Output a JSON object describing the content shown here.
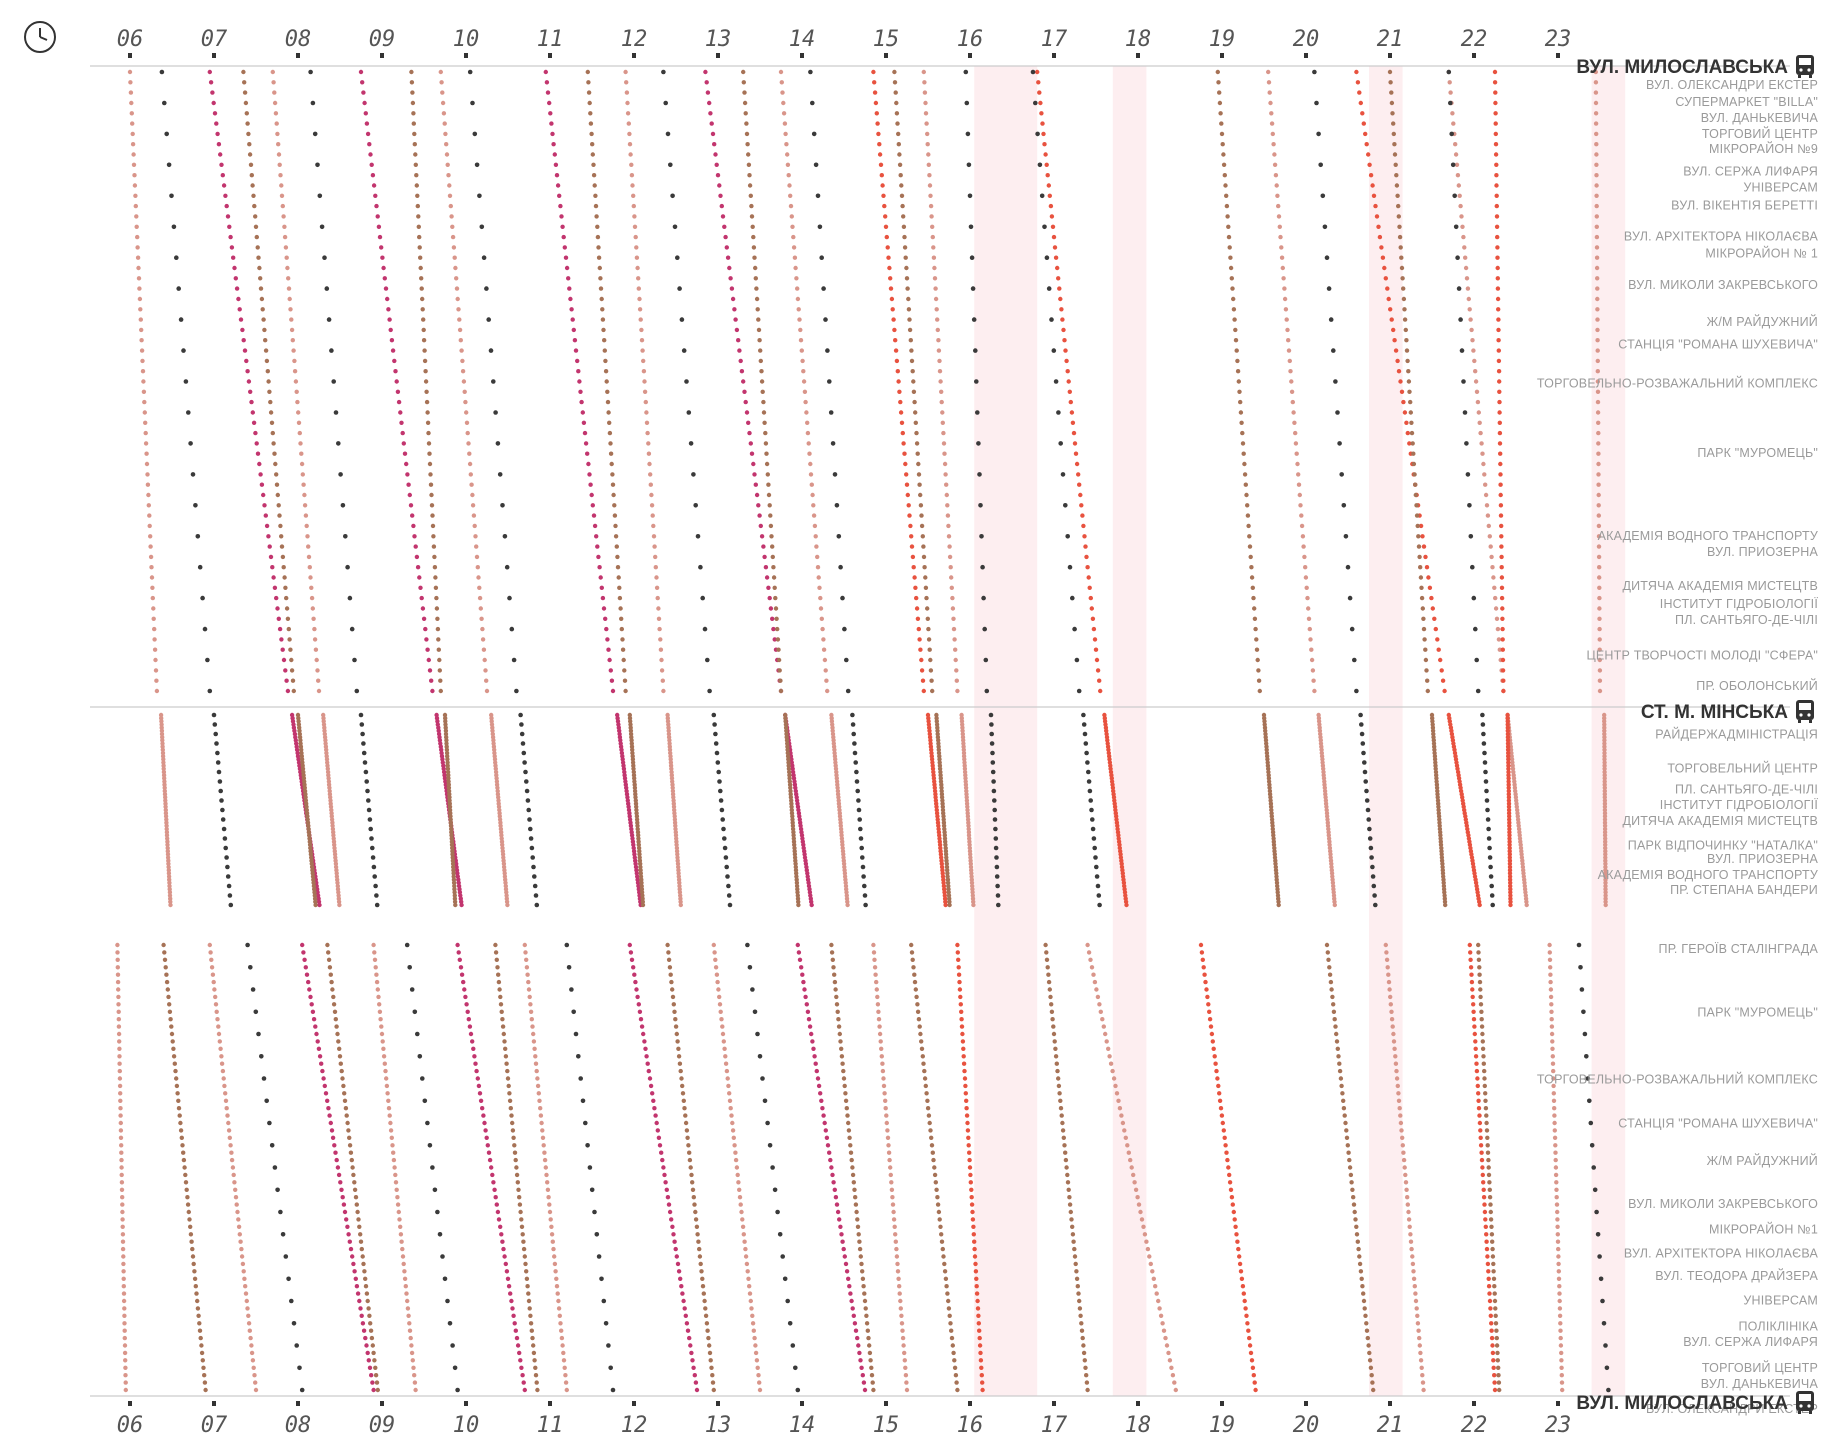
{
  "chart_data": {
    "type": "scatter",
    "title": "",
    "xlabel": "",
    "ylabel": "",
    "x_ticks": [
      "06",
      "07",
      "08",
      "09",
      "10",
      "11",
      "12",
      "13",
      "14",
      "15",
      "16",
      "17",
      "18",
      "19",
      "20",
      "21",
      "22",
      "23"
    ],
    "xlim": [
      5.8,
      23.9
    ],
    "grid": false,
    "clock_icon": "clock-icon",
    "bus_icon": "bus-icon",
    "colors": {
      "axis_line": "#cccccc",
      "tick_mark": "#333333",
      "label": "#9a9a9a",
      "terminal": "#333333",
      "shade": "#fdeef0",
      "series": [
        "#d9958a",
        "#3a3a3a",
        "#c2356e",
        "#a67256",
        "#e8523f"
      ]
    },
    "shaded_hours": [
      [
        16.05,
        16.8
      ],
      [
        17.7,
        18.1
      ],
      [
        20.75,
        21.15
      ],
      [
        23.4,
        23.8
      ]
    ],
    "terminals": {
      "top": "ВУЛ. МИЛОСЛАВСЬКА",
      "middle": "СТ. М. МІНСЬКА",
      "bottom": "ВУЛ. МИЛОСЛАВСЬКА"
    },
    "stops_outbound": [
      {
        "name": "ВУЛ. ОЛЕКСАНДРИ ЕКСТЕР",
        "pos": 0.02
      },
      {
        "name": "СУПЕРМАРКЕТ \"BILLA\"",
        "pos": 0.047
      },
      {
        "name": "ВУЛ. ДАНЬКЕВИЧА",
        "pos": 0.072
      },
      {
        "name": "ТОРГОВИЙ ЦЕНТР",
        "pos": 0.097
      },
      {
        "name": "МІКРОРАЙОН №9",
        "pos": 0.12
      },
      {
        "name": "ВУЛ. СЕРЖА ЛИФАРЯ",
        "pos": 0.155
      },
      {
        "name": "УНІВЕРСАМ",
        "pos": 0.18
      },
      {
        "name": "ВУЛ. ВІКЕНТІЯ БЕРЕТТІ",
        "pos": 0.208
      },
      {
        "name": "ВУЛ. АРХІТЕКТОРА НІКОЛАЄВА",
        "pos": 0.257
      },
      {
        "name": "МІКРОРАЙОН № 1",
        "pos": 0.283
      },
      {
        "name": "ВУЛ. МИКОЛИ ЗАКРЕВСЬКОГО",
        "pos": 0.332
      },
      {
        "name": "Ж/М РАЙДУЖНИЙ",
        "pos": 0.39
      },
      {
        "name": "СТАНЦІЯ \"РОМАНА ШУХЕВИЧА\"",
        "pos": 0.425
      },
      {
        "name": "ТОРГОВЕЛЬНО-РОЗВАЖАЛЬНИЙ КОМПЛЕКС",
        "pos": 0.486
      },
      {
        "name": "ПАРК \"МУРОМЕЦЬ\"",
        "pos": 0.594
      },
      {
        "name": "АКАДЕМІЯ ВОДНОГО ТРАНСПОРТУ",
        "pos": 0.724
      },
      {
        "name": "ВУЛ. ПРИОЗЕРНА",
        "pos": 0.749
      },
      {
        "name": "ДИТЯЧА АКАДЕМІЯ МИСТЕЦТВ",
        "pos": 0.802
      },
      {
        "name": "ІНСТИТУТ ГІДРОБІОЛОГІЇ",
        "pos": 0.83
      },
      {
        "name": "ПЛ. САНТЬЯГО-ДЕ-ЧІЛІ",
        "pos": 0.855
      },
      {
        "name": "ЦЕНТР ТВОРЧОСТІ МОЛОДІ \"СФЕРА\"",
        "pos": 0.91
      },
      {
        "name": "ПР. ОБОЛОНСЬКИЙ",
        "pos": 0.958
      }
    ],
    "stops_inbound": [
      {
        "name": "РАЙДЕРЖАДМІНІСТРАЦІЯ",
        "pos": 0.158
      },
      {
        "name": "ТОРГОВЕЛЬНИЙ ЦЕНТР",
        "pos": 0.331
      },
      {
        "name": "ПЛ. САНТЬЯГО-ДЕ-ЧІЛІ",
        "pos": 0.438
      },
      {
        "name": "ІНСТИТУТ ГІДРОБІОЛОГІЇ",
        "pos": 0.514
      },
      {
        "name": "ДИТЯЧА АКАДЕМІЯ МИСТЕЦТВ",
        "pos": 0.596
      },
      {
        "name": "ПАРК ВІДПОЧИНКУ \"НАТАЛКА\"",
        "pos": 0.719
      },
      {
        "name": "ВУЛ. ПРИОЗЕРНА",
        "pos": 0.789
      },
      {
        "name": "АКАДЕМІЯ ВОДНОГО ТРАНСПОРТУ",
        "pos": 0.869
      },
      {
        "name": "ПР. СТЕПАНА БАНДЕРИ",
        "pos": 0.944
      },
      {
        "name": "ПР. ГЕРОЇВ СТАЛІНГРАДА",
        "pos": 0.0
      },
      {
        "name": "ПАРК \"МУРОМЕЦЬ\"",
        "pos": 0.138
      },
      {
        "name": "ТОРГОВЕЛЬНО-РОЗВАЖАЛЬНИЙ КОМПЛЕКС",
        "pos": 0.283
      },
      {
        "name": "СТАНЦІЯ \"РОМАНА ШУХЕВИЧА\"",
        "pos": 0.379
      },
      {
        "name": "Ж/М РАЙДУЖНИЙ",
        "pos": 0.46
      },
      {
        "name": "ВУЛ. МИКОЛИ ЗАКРЕВСЬКОГО",
        "pos": 0.553
      },
      {
        "name": "МІКРОРАЙОН №1",
        "pos": 0.608
      },
      {
        "name": "ВУЛ. АРХІТЕКТОРА НІКОЛАЄВА",
        "pos": 0.66
      },
      {
        "name": "ВУЛ. ТЕОДОРА ДРАЙЗЕРА",
        "pos": 0.709
      },
      {
        "name": "УНІВЕРСАМ",
        "pos": 0.763
      },
      {
        "name": "ПОЛІКЛІНІКА",
        "pos": 0.819
      },
      {
        "name": "ВУЛ. СЕРЖА ЛИФАРЯ",
        "pos": 0.853
      },
      {
        "name": "ТОРГОВИЙ ЦЕНТР",
        "pos": 0.909
      },
      {
        "name": "ВУЛ. ДАНЬКЕВИЧА",
        "pos": 0.944
      },
      {
        "name": "ВУЛ. ОЛЕКСАНДРИ ЕКСТЕР",
        "pos": 0.998
      }
    ],
    "trips_top": [
      {
        "c": 0,
        "t0": 6.0,
        "t1": 6.32
      },
      {
        "c": 1,
        "t0": 6.38,
        "t1": 6.95
      },
      {
        "c": 2,
        "t0": 6.95,
        "t1": 7.88
      },
      {
        "c": 3,
        "t0": 7.35,
        "t1": 7.95
      },
      {
        "c": 0,
        "t0": 7.7,
        "t1": 8.25
      },
      {
        "c": 1,
        "t0": 8.15,
        "t1": 8.7
      },
      {
        "c": 2,
        "t0": 8.75,
        "t1": 9.6
      },
      {
        "c": 3,
        "t0": 9.35,
        "t1": 9.7
      },
      {
        "c": 0,
        "t0": 9.7,
        "t1": 10.25
      },
      {
        "c": 1,
        "t0": 10.05,
        "t1": 10.6
      },
      {
        "c": 2,
        "t0": 10.95,
        "t1": 11.75
      },
      {
        "c": 3,
        "t0": 11.45,
        "t1": 11.9
      },
      {
        "c": 0,
        "t0": 11.9,
        "t1": 12.35
      },
      {
        "c": 1,
        "t0": 12.35,
        "t1": 12.9
      },
      {
        "c": 2,
        "t0": 12.85,
        "t1": 13.75
      },
      {
        "c": 3,
        "t0": 13.3,
        "t1": 13.75
      },
      {
        "c": 0,
        "t0": 13.75,
        "t1": 14.3
      },
      {
        "c": 1,
        "t0": 14.1,
        "t1": 14.55
      },
      {
        "c": 4,
        "t0": 14.85,
        "t1": 15.45
      },
      {
        "c": 3,
        "t0": 15.1,
        "t1": 15.55
      },
      {
        "c": 0,
        "t0": 15.45,
        "t1": 15.85
      },
      {
        "c": 1,
        "t0": 15.95,
        "t1": 16.2
      },
      {
        "c": 4,
        "t0": 16.8,
        "t1": 17.55
      },
      {
        "c": 1,
        "t0": 16.75,
        "t1": 17.3
      },
      {
        "c": 3,
        "t0": 18.95,
        "t1": 19.45
      },
      {
        "c": 0,
        "t0": 19.55,
        "t1": 20.1
      },
      {
        "c": 1,
        "t0": 20.1,
        "t1": 20.6
      },
      {
        "c": 4,
        "t0": 20.6,
        "t1": 21.65
      },
      {
        "c": 3,
        "t0": 21.0,
        "t1": 21.45
      },
      {
        "c": 0,
        "t0": 21.7,
        "t1": 22.35
      },
      {
        "c": 1,
        "t0": 21.7,
        "t1": 22.05
      },
      {
        "c": 4,
        "t0": 22.25,
        "t1": 22.35
      },
      {
        "c": 0,
        "t0": 23.45,
        "t1": 23.5
      }
    ],
    "trips_bottom": [
      {
        "c": 0,
        "t0": 5.85,
        "t1": 5.95
      },
      {
        "c": 3,
        "t0": 6.4,
        "t1": 6.9
      },
      {
        "c": 0,
        "t0": 6.95,
        "t1": 7.5
      },
      {
        "c": 1,
        "t0": 7.4,
        "t1": 8.05
      },
      {
        "c": 2,
        "t0": 8.05,
        "t1": 8.9
      },
      {
        "c": 3,
        "t0": 8.35,
        "t1": 8.95
      },
      {
        "c": 0,
        "t0": 8.9,
        "t1": 9.4
      },
      {
        "c": 1,
        "t0": 9.3,
        "t1": 9.9
      },
      {
        "c": 2,
        "t0": 9.9,
        "t1": 10.7
      },
      {
        "c": 3,
        "t0": 10.35,
        "t1": 10.85
      },
      {
        "c": 0,
        "t0": 10.7,
        "t1": 11.2
      },
      {
        "c": 1,
        "t0": 11.2,
        "t1": 11.75
      },
      {
        "c": 2,
        "t0": 11.95,
        "t1": 12.75
      },
      {
        "c": 3,
        "t0": 12.4,
        "t1": 12.95
      },
      {
        "c": 0,
        "t0": 12.95,
        "t1": 13.5
      },
      {
        "c": 1,
        "t0": 13.35,
        "t1": 13.95
      },
      {
        "c": 2,
        "t0": 13.95,
        "t1": 14.75
      },
      {
        "c": 3,
        "t0": 14.35,
        "t1": 14.85
      },
      {
        "c": 0,
        "t0": 14.85,
        "t1": 15.25
      },
      {
        "c": 3,
        "t0": 15.3,
        "t1": 15.85
      },
      {
        "c": 4,
        "t0": 15.85,
        "t1": 16.15
      },
      {
        "c": 3,
        "t0": 16.9,
        "t1": 17.4
      },
      {
        "c": 0,
        "t0": 17.4,
        "t1": 18.45
      },
      {
        "c": 4,
        "t0": 18.75,
        "t1": 19.4
      },
      {
        "c": 3,
        "t0": 20.25,
        "t1": 20.8
      },
      {
        "c": 0,
        "t0": 20.95,
        "t1": 21.4
      },
      {
        "c": 4,
        "t0": 21.95,
        "t1": 22.25
      },
      {
        "c": 3,
        "t0": 22.05,
        "t1": 22.3
      },
      {
        "c": 0,
        "t0": 22.9,
        "t1": 23.05
      },
      {
        "c": 1,
        "t0": 23.25,
        "t1": 23.6
      }
    ]
  }
}
